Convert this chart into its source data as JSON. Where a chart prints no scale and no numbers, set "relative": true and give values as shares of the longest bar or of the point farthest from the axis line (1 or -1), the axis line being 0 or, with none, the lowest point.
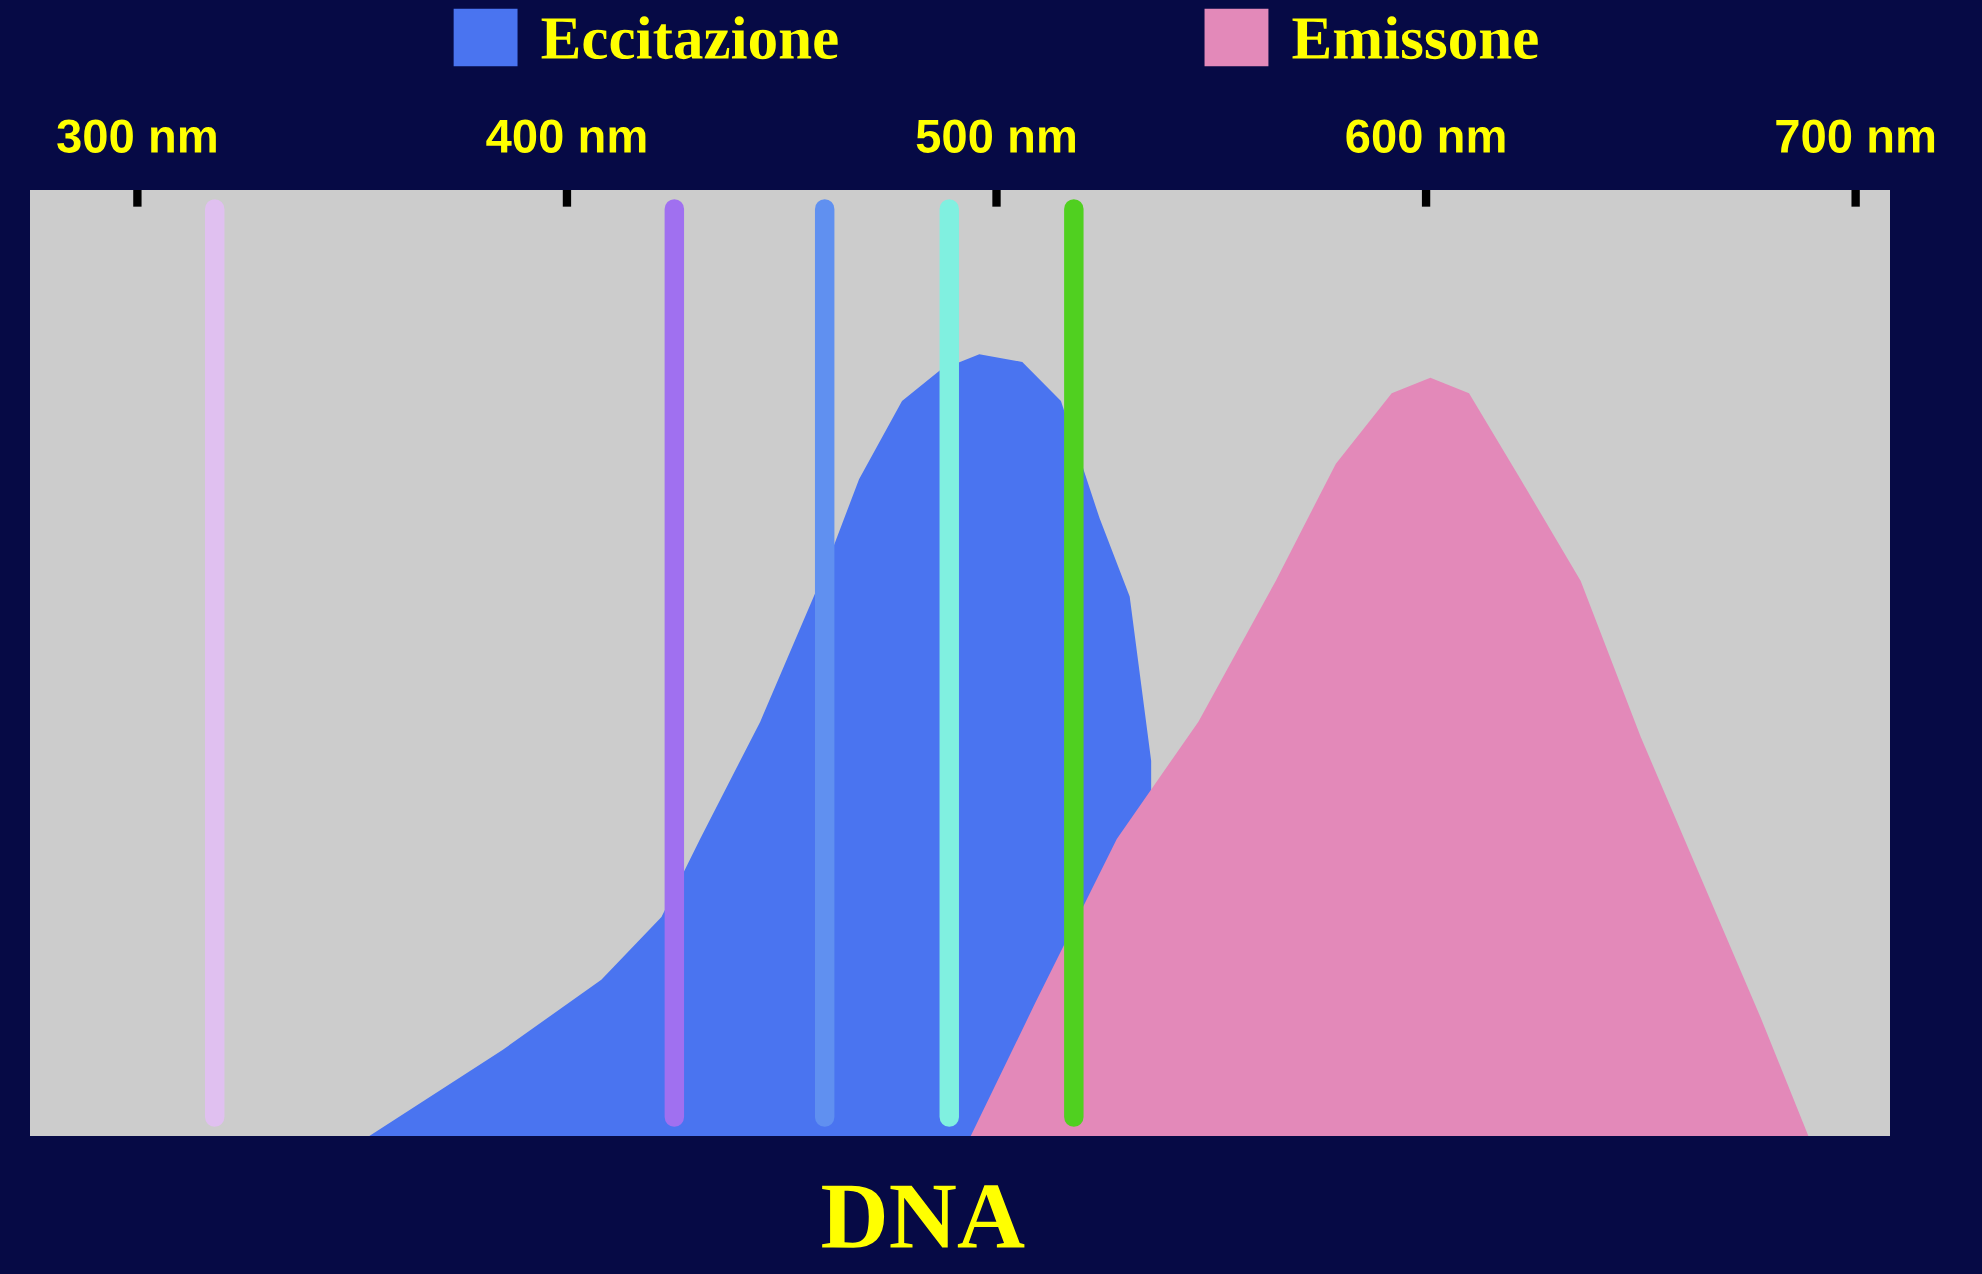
{
  "chart_data": {
    "type": "area",
    "title": "DNA",
    "relative": true,
    "xlim": [
      275,
      708
    ],
    "xticks": [
      {
        "value": 300,
        "label": "300 nm"
      },
      {
        "value": 400,
        "label": "400 nm"
      },
      {
        "value": 500,
        "label": "500 nm"
      },
      {
        "value": 600,
        "label": "600 nm"
      },
      {
        "value": 700,
        "label": "700 nm"
      }
    ],
    "grid": false,
    "legend": "top",
    "series": [
      {
        "name": "Eccitazione",
        "color": "#4a74f0",
        "x": [
          354,
          385,
          408,
          422,
          431,
          445,
          459,
          468,
          478,
          487,
          496,
          506,
          515,
          524,
          531,
          536
        ],
        "values": [
          0,
          0.11,
          0.2,
          0.28,
          0.38,
          0.53,
          0.71,
          0.84,
          0.94,
          0.98,
          1,
          0.99,
          0.94,
          0.79,
          0.69,
          0.48
        ]
      },
      {
        "name": "Emissone",
        "color": "#e389b9",
        "x": [
          494,
          509,
          528,
          547,
          565,
          579,
          592,
          601,
          610,
          622,
          636,
          650,
          664,
          678,
          689
        ],
        "values": [
          0,
          0.17,
          0.38,
          0.53,
          0.71,
          0.86,
          0.95,
          0.97,
          0.95,
          0.84,
          0.71,
          0.51,
          0.33,
          0.15,
          0
        ]
      }
    ],
    "ref_lines": [
      {
        "axis": "x",
        "value": 318,
        "color": "#e0c0f0"
      },
      {
        "axis": "x",
        "value": 425,
        "color": "#a070f0"
      },
      {
        "axis": "x",
        "value": 460,
        "color": "#6090f0"
      },
      {
        "axis": "x",
        "value": 489,
        "color": "#80f0e0"
      },
      {
        "axis": "x",
        "value": 518,
        "color": "#50d020"
      }
    ]
  }
}
